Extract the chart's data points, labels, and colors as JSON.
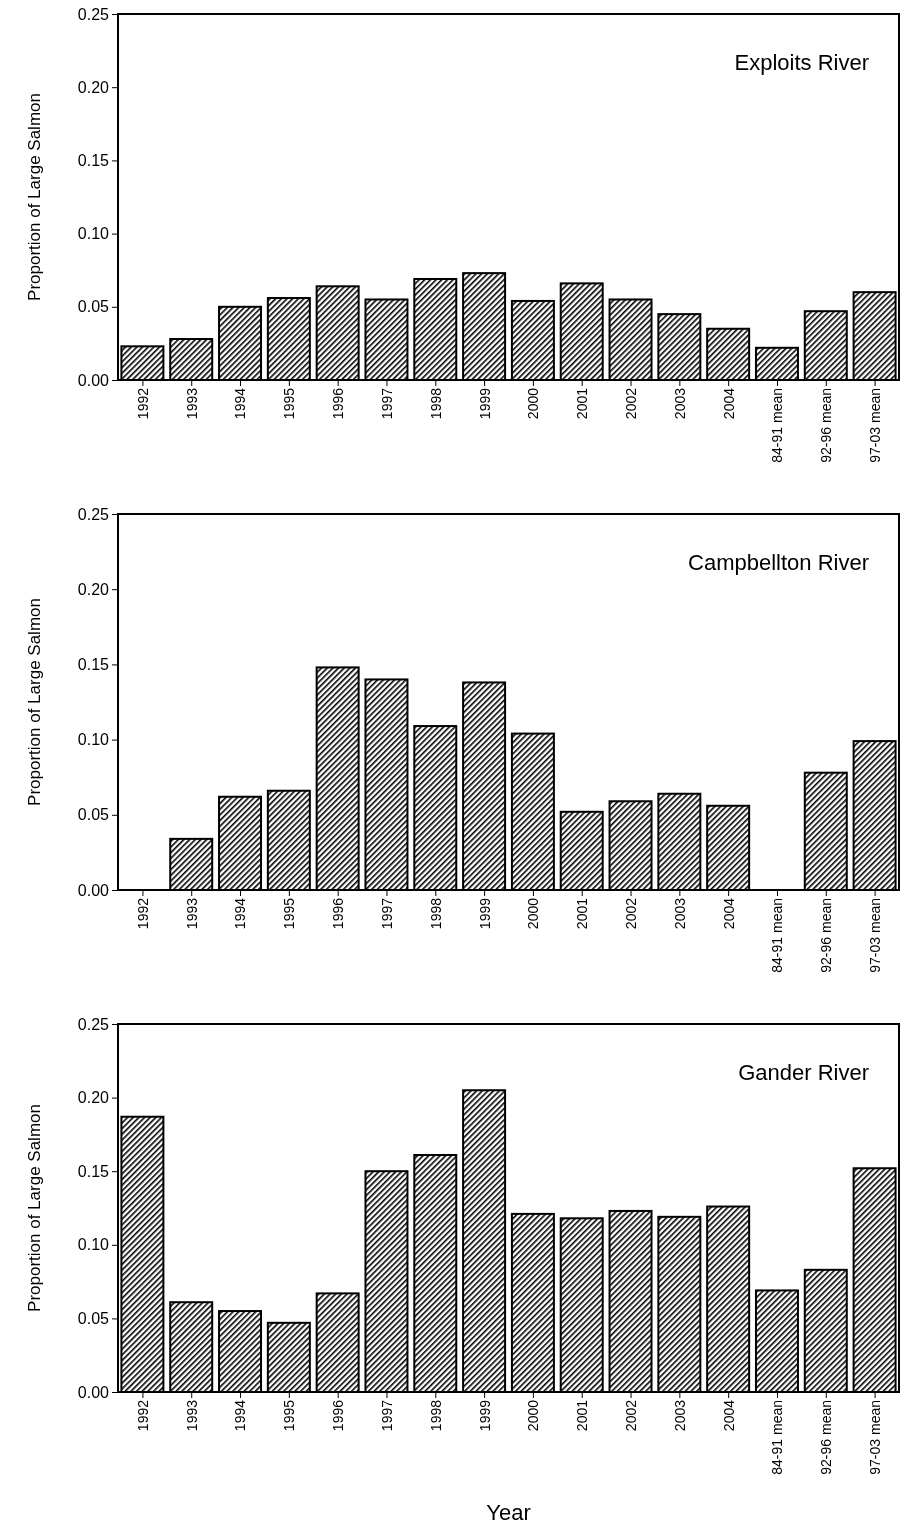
{
  "chart_data": [
    {
      "type": "bar",
      "title": "Exploits River",
      "ylabel": "Proportion of Large Salmon",
      "categories": [
        "1992",
        "1993",
        "1994",
        "1995",
        "1996",
        "1997",
        "1998",
        "1999",
        "2000",
        "2001",
        "2002",
        "2003",
        "2004",
        "84-91 mean",
        "92-96 mean",
        "97-03 mean"
      ],
      "values": [
        0.023,
        0.028,
        0.05,
        0.056,
        0.064,
        0.055,
        0.069,
        0.073,
        0.054,
        0.066,
        0.055,
        0.045,
        0.035,
        0.022,
        0.047,
        0.06
      ],
      "color": "#000000",
      "ylim": [
        0,
        0.25
      ],
      "yticks": [
        {
          "value": 0,
          "label": "0.00"
        },
        {
          "value": 0.05,
          "label": "0.05"
        },
        {
          "value": 0.1,
          "label": "0.10"
        },
        {
          "value": 0.15,
          "label": "0.15"
        },
        {
          "value": 0.2,
          "label": "0.20"
        },
        {
          "value": 0.25,
          "label": "0.25"
        }
      ]
    },
    {
      "type": "bar",
      "title": "Campbellton River",
      "ylabel": "Proportion of Large Salmon",
      "categories": [
        "1992",
        "1993",
        "1994",
        "1995",
        "1996",
        "1997",
        "1998",
        "1999",
        "2000",
        "2001",
        "2002",
        "2003",
        "2004",
        "84-91 mean",
        "92-96 mean",
        "97-03 mean"
      ],
      "values": [
        null,
        0.034,
        0.062,
        0.066,
        0.148,
        0.14,
        0.109,
        0.138,
        0.104,
        0.052,
        0.059,
        0.064,
        0.056,
        null,
        0.078,
        0.099
      ],
      "color": "#000000",
      "ylim": [
        0,
        0.25
      ],
      "yticks": [
        {
          "value": 0,
          "label": "0.00"
        },
        {
          "value": 0.05,
          "label": "0.05"
        },
        {
          "value": 0.1,
          "label": "0.10"
        },
        {
          "value": 0.15,
          "label": "0.15"
        },
        {
          "value": 0.2,
          "label": "0.20"
        },
        {
          "value": 0.25,
          "label": "0.25"
        }
      ]
    },
    {
      "type": "bar",
      "title": "Gander River",
      "ylabel": "Proportion of Large Salmon",
      "xlabel": "Year",
      "categories": [
        "1992",
        "1993",
        "1994",
        "1995",
        "1996",
        "1997",
        "1998",
        "1999",
        "2000",
        "2001",
        "2002",
        "2003",
        "2004",
        "84-91 mean",
        "92-96 mean",
        "97-03 mean"
      ],
      "values": [
        0.187,
        0.061,
        0.055,
        0.047,
        0.067,
        0.15,
        0.161,
        0.205,
        0.121,
        0.118,
        0.123,
        0.119,
        0.126,
        0.069,
        0.083,
        0.152
      ],
      "color": "#000000",
      "ylim": [
        0,
        0.25
      ],
      "yticks": [
        {
          "value": 0,
          "label": "0.00"
        },
        {
          "value": 0.05,
          "label": "0.05"
        },
        {
          "value": 0.1,
          "label": "0.10"
        },
        {
          "value": 0.15,
          "label": "0.15"
        },
        {
          "value": 0.2,
          "label": "0.20"
        },
        {
          "value": 0.25,
          "label": "0.25"
        }
      ]
    }
  ]
}
